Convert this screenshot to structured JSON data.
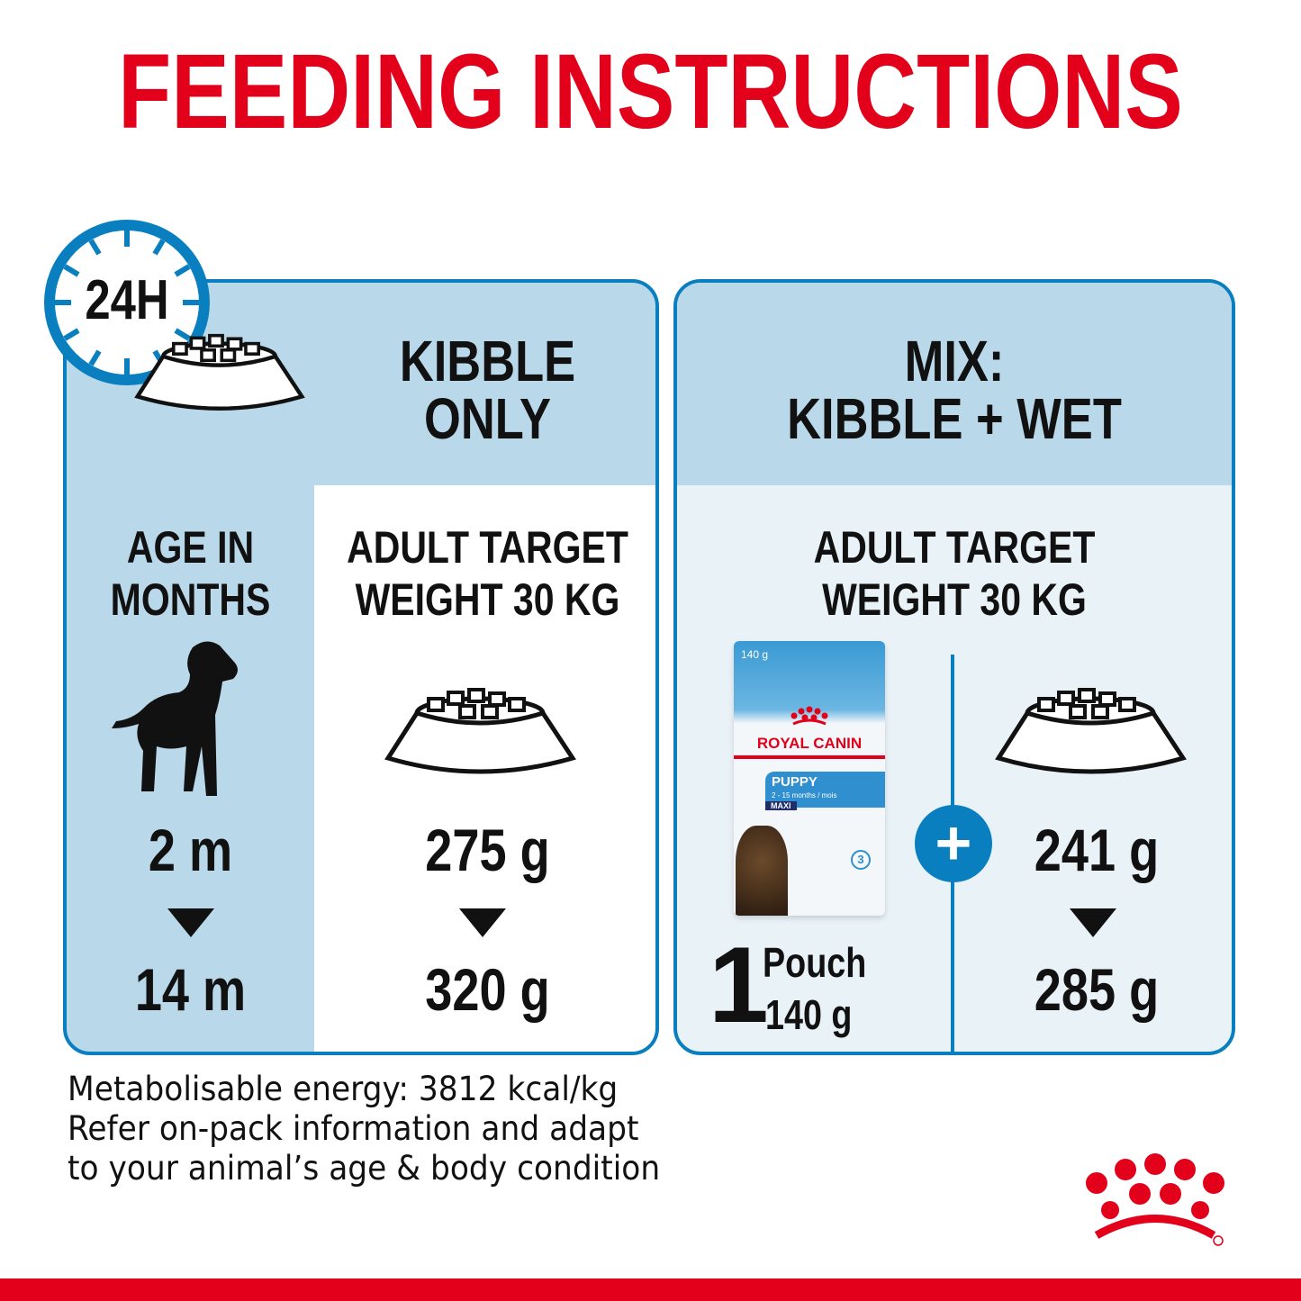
{
  "title": "FEEDING INSTRUCTIONS",
  "clock_label": "24H",
  "kibble_only": {
    "heading": [
      "KIBBLE",
      "ONLY"
    ],
    "age_label": [
      "AGE IN",
      "MONTHS"
    ],
    "age_start": "2 m",
    "age_end": "14 m",
    "weight_label": [
      "ADULT TARGET",
      "WEIGHT 30 KG"
    ],
    "amount_start": "275 g",
    "amount_end": "320 g"
  },
  "mix": {
    "heading": [
      "MIX:",
      "KIBBLE + WET"
    ],
    "weight_label": [
      "ADULT TARGET",
      "WEIGHT 30 KG"
    ],
    "pouch_count": "1",
    "pouch_unit": "Pouch",
    "pouch_weight": "140 g",
    "plus": "+",
    "amount_start": "241 g",
    "amount_end": "285 g"
  },
  "pouch": {
    "weight": "140 g",
    "brand": "ROYAL CANIN",
    "product": "PUPPY",
    "age": "2 - 15 months / mois",
    "size": "MAXI",
    "stage": "3"
  },
  "notes": [
    "Metabolisable energy: 3812 kcal/kg",
    "Refer on-pack information and adapt",
    "to your animal’s age & body condition"
  ],
  "colors": {
    "red": "#e2001a",
    "blue": "#0a7fc0",
    "light_blue": "#b9d9ea"
  },
  "icons": [
    "clock-icon",
    "bowl-icon",
    "puppy-icon",
    "plus-icon",
    "royal-canin-crown-logo"
  ]
}
